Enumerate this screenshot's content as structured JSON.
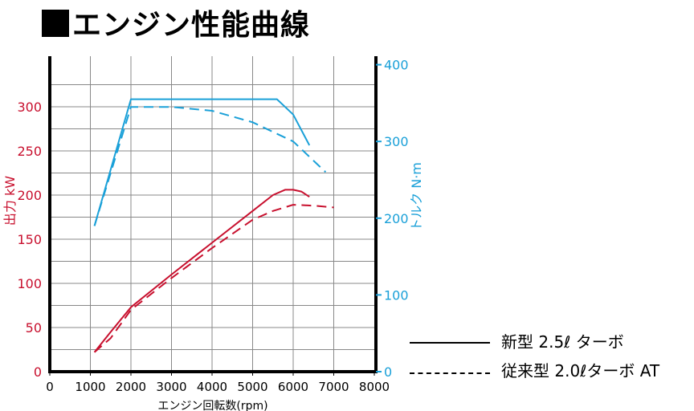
{
  "page_title": "エンジン性能曲線",
  "chart_data": {
    "type": "line",
    "title": "エンジン性能曲線",
    "xlabel": "エンジン回転数(rpm)",
    "xlim": [
      0,
      8000
    ],
    "x_ticks": [
      "0",
      "1000",
      "2000",
      "3000",
      "4000",
      "5000",
      "6000",
      "7000",
      "8000"
    ],
    "ylabel_left": "出力 kW",
    "ylim_left": [
      0,
      350
    ],
    "y_ticks_left": [
      "0",
      "50",
      "100",
      "150",
      "200",
      "250",
      "300"
    ],
    "ylabel_right": "トルク N·m",
    "ylim_right": [
      0,
      400
    ],
    "y_ticks_right": [
      "0",
      "100",
      "200",
      "300",
      "400"
    ],
    "grid": true,
    "legend_position": "bottom-right",
    "colors": {
      "power": "#c8102e",
      "torque": "#1aa0d8",
      "axis": "#000000",
      "grid": "#888888"
    },
    "series": [
      {
        "name": "新型 2.5ℓ ターボ",
        "metric": "power",
        "axis": "left",
        "style": "solid",
        "x": [
          1100,
          1500,
          2000,
          3000,
          4000,
          5000,
          5500,
          5800,
          6000,
          6200,
          6400
        ],
        "y": [
          22,
          45,
          73,
          110,
          146,
          182,
          200,
          206,
          206,
          204,
          198
        ]
      },
      {
        "name": "従来型 2.0ℓターボ AT",
        "metric": "power",
        "axis": "left",
        "style": "dashed",
        "x": [
          1100,
          1500,
          2000,
          3000,
          4000,
          5000,
          5500,
          6000,
          6500,
          7000
        ],
        "y": [
          22,
          38,
          70,
          106,
          140,
          172,
          182,
          189,
          188,
          186
        ]
      },
      {
        "name": "新型 2.5ℓ ターボ",
        "metric": "torque",
        "axis": "right",
        "style": "solid",
        "x": [
          1100,
          2000,
          3000,
          4000,
          5000,
          5600,
          6000,
          6400
        ],
        "y": [
          190,
          355,
          355,
          355,
          355,
          355,
          335,
          295
        ]
      },
      {
        "name": "従来型 2.0ℓターボ AT",
        "metric": "torque",
        "axis": "right",
        "style": "dashed",
        "x": [
          1100,
          2000,
          3000,
          4000,
          5000,
          6000,
          6500,
          6800
        ],
        "y": [
          190,
          345,
          345,
          340,
          325,
          300,
          275,
          260
        ]
      }
    ]
  },
  "legend": {
    "items": [
      {
        "label": "新型 2.5ℓ ターボ",
        "style": "solid"
      },
      {
        "label": "従来型 2.0ℓターボ AT",
        "style": "dashed"
      }
    ]
  }
}
